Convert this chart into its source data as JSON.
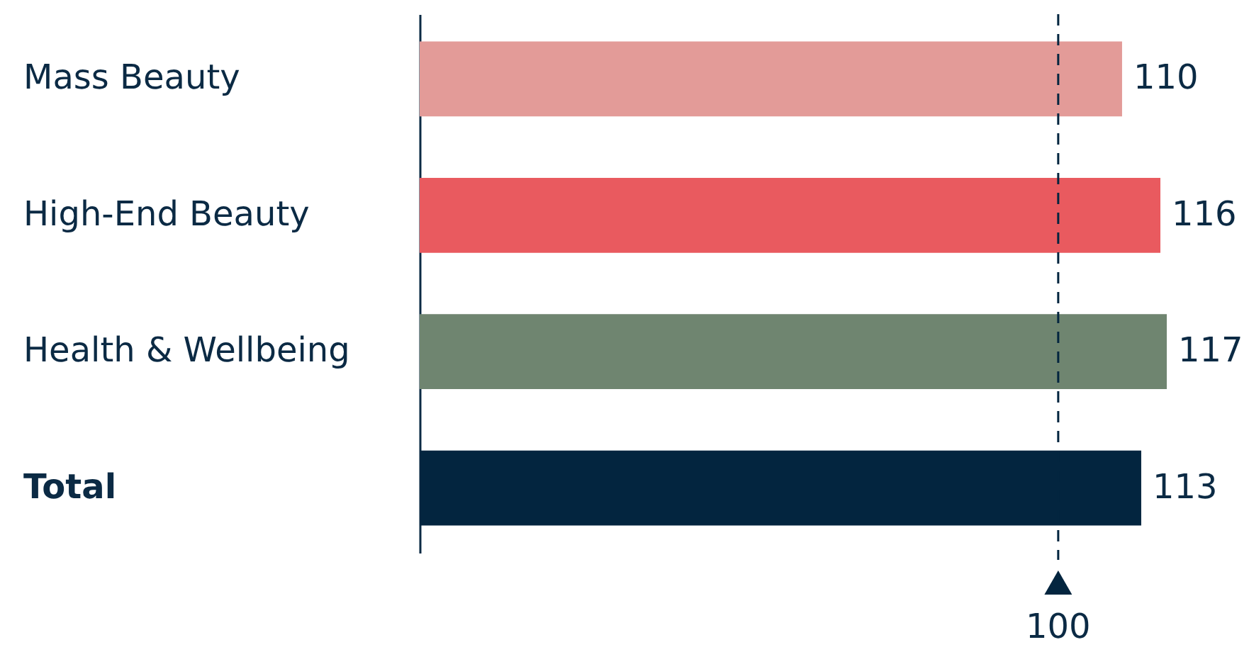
{
  "chart_data": {
    "type": "bar",
    "orientation": "horizontal",
    "categories": [
      "Mass Beauty",
      "High-End Beauty",
      "Health & Wellbeing",
      "Total"
    ],
    "values": [
      110,
      116,
      117,
      113
    ],
    "colors": [
      "#e39b98",
      "#e95a5f",
      "#6f8570",
      "#03253f"
    ],
    "data_labels": true,
    "tick_labels": "y",
    "grid": false,
    "legend": false,
    "ref_lines": [
      {
        "axis": "x",
        "value": 100,
        "label": "100",
        "line_style": "dashed",
        "color": "#03253f"
      }
    ]
  }
}
